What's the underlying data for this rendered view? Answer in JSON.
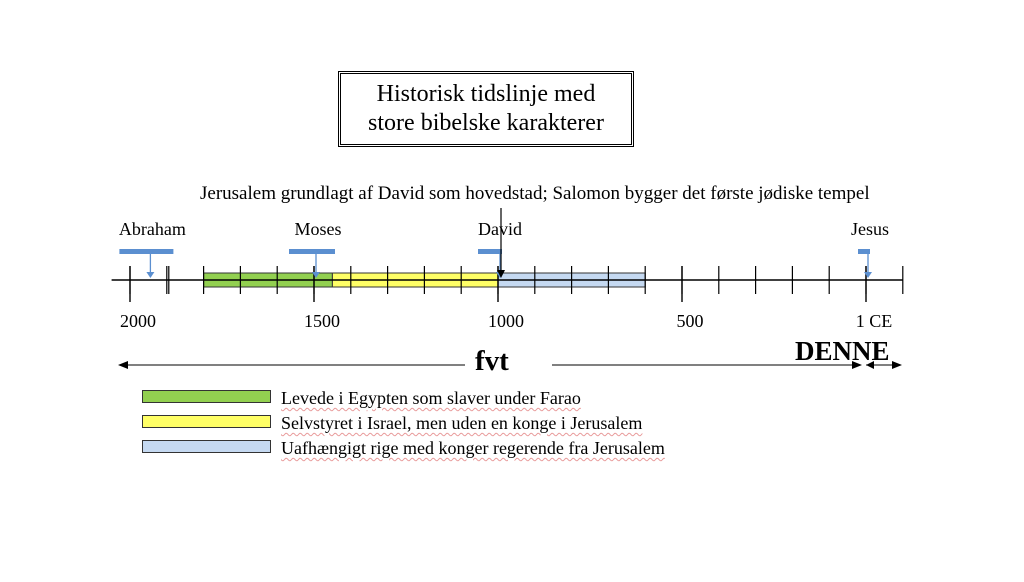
{
  "title": "Historisk tidslinje med\nstore bibelske karakterer",
  "event_note": "Jerusalem grundlagt af David som hovedstad; Salomon bygger det første jødiske tempel",
  "characters": [
    {
      "name": "Abraham",
      "year": -1950
    },
    {
      "name": "Moses",
      "year": -1500
    },
    {
      "name": "David",
      "year": -1000
    },
    {
      "name": "Jesus",
      "year": 0
    }
  ],
  "axis": {
    "min_year": -2050,
    "max_year": 100,
    "major_ticks": [
      {
        "year": -2000,
        "label": "2000"
      },
      {
        "year": -1500,
        "label": "1500"
      },
      {
        "year": -1000,
        "label": "1000"
      },
      {
        "year": -500,
        "label": "500"
      },
      {
        "year": 0,
        "label": "1 CE"
      }
    ],
    "minor_step": 100
  },
  "periods": [
    {
      "start": -1800,
      "end": -1450,
      "color": "#92d050",
      "text": "Levede i Egypten som slaver under Farao"
    },
    {
      "start": -1450,
      "end": -1000,
      "color": "#ffff66",
      "text": "Selvstyret i Israel, men uden en konge i Jerusalem"
    },
    {
      "start": -1000,
      "end": -600,
      "color": "#c5d9f1",
      "text": "Uafhængigt rige med konger regerende fra Jerusalem"
    }
  ],
  "era_labels": {
    "bce": "fvt",
    "ce": "DENNE"
  },
  "colors": {
    "marker": "#5b8fd0",
    "axis": "#000000"
  }
}
